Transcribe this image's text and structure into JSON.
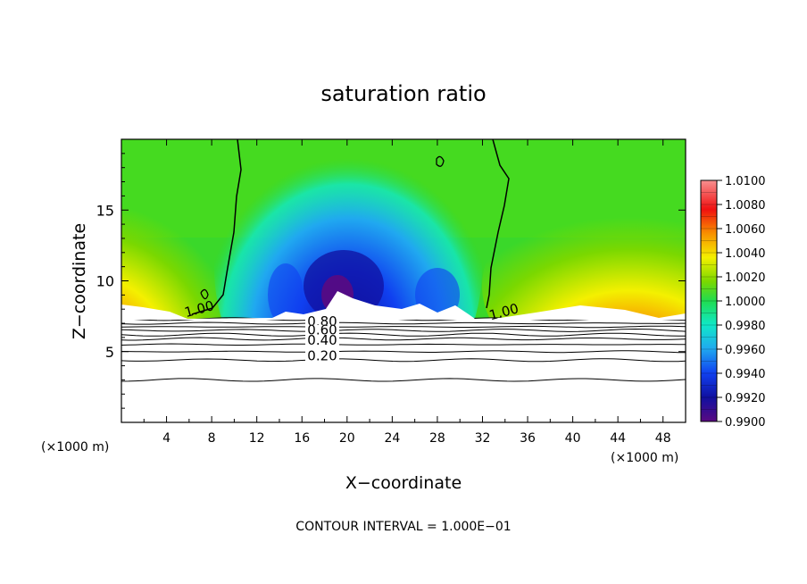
{
  "chart_data": {
    "type": "heatmap",
    "title": "saturation ratio",
    "xlabel": "X−coordinate",
    "ylabel": "Z−coordinate",
    "x_unit_left": "(×1000 m)",
    "x_unit_right": "(×1000 m)",
    "xlim": [
      0,
      50
    ],
    "ylim": [
      0,
      20
    ],
    "x_ticks": [
      4,
      8,
      12,
      16,
      20,
      24,
      28,
      32,
      36,
      40,
      44,
      48
    ],
    "y_ticks": [
      5,
      10,
      15
    ],
    "colorbar": {
      "min": 0.99,
      "max": 1.01,
      "labels": [
        "1.0100",
        "1.0080",
        "1.0060",
        "1.0040",
        "1.0020",
        "1.0000",
        "0.9980",
        "0.9960",
        "0.9940",
        "0.9920",
        "0.9900"
      ]
    },
    "contour_labels": [
      {
        "text": "1.00",
        "x": 7.0,
        "z": 7.7
      },
      {
        "text": "1.00",
        "x": 34.0,
        "z": 7.5
      },
      {
        "text": "0.80",
        "x": 17.8,
        "z": 6.8
      },
      {
        "text": "0.60",
        "x": 17.8,
        "z": 6.2
      },
      {
        "text": "0.40",
        "x": 17.8,
        "z": 5.5
      },
      {
        "text": "0.20",
        "x": 17.8,
        "z": 4.4
      }
    ],
    "contour_levels": [
      1.0,
      0.9,
      0.8,
      0.7,
      0.6,
      0.5,
      0.4,
      0.3,
      0.2,
      0.1
    ],
    "saturation_base_z": 7.3,
    "footer": "CONTOUR INTERVAL = 1.000E−01"
  }
}
